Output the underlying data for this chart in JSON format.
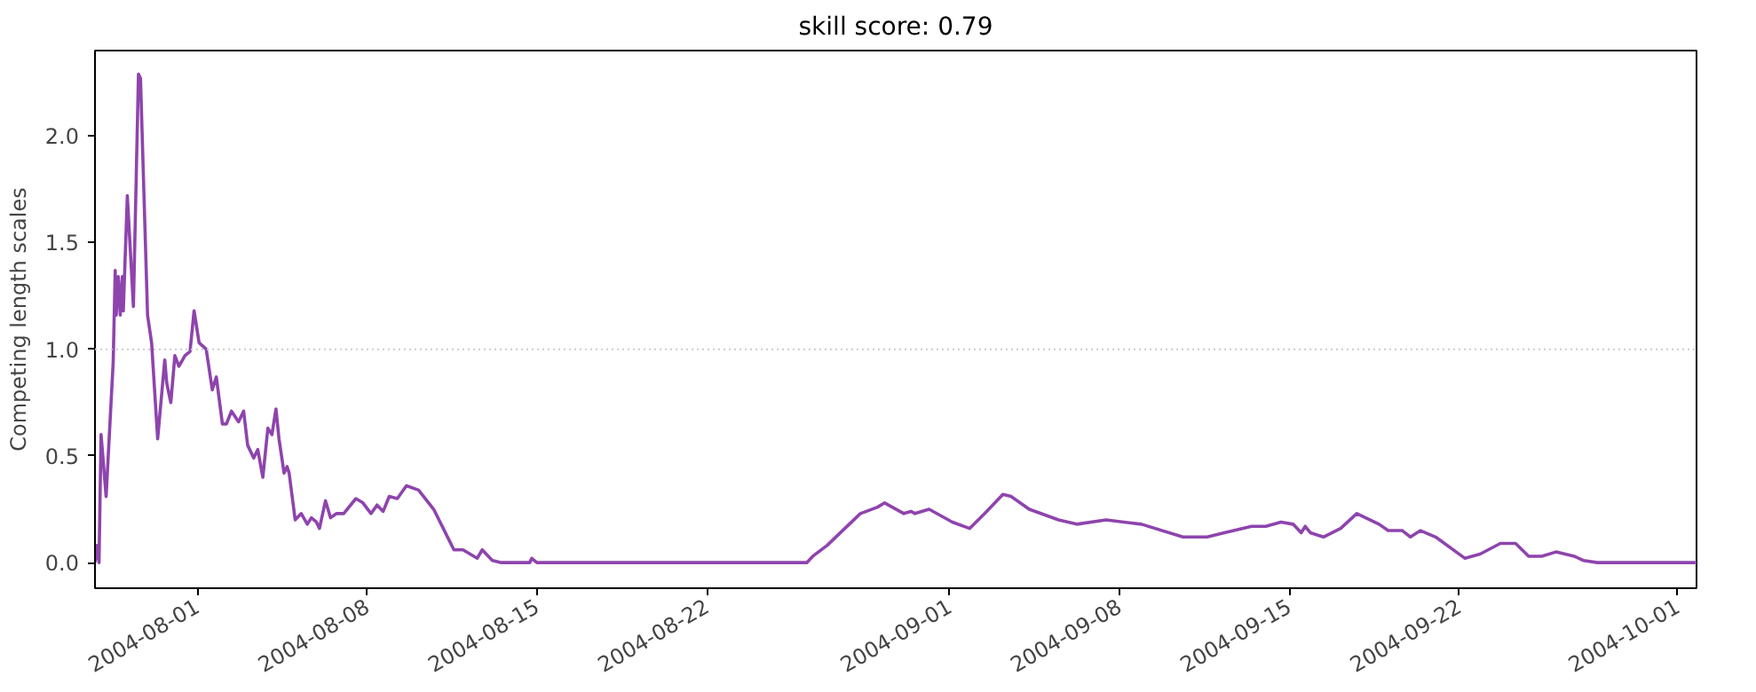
{
  "chart_data": {
    "type": "line",
    "title": "skill score: 0.79",
    "ylabel": "Competing length scales",
    "x": [
      "2004-07-27T19:00",
      "2004-07-27T21:00",
      "2004-07-27T23:00",
      "2004-07-28T01:00",
      "2004-07-28T06:00",
      "2004-07-28T13:00",
      "2004-07-28T15:00",
      "2004-07-28T16:00",
      "2004-07-28T18:00",
      "2004-07-28T20:00",
      "2004-07-28T22:00",
      "2004-07-28T23:00",
      "2004-07-29T03:00",
      "2004-07-29T09:00",
      "2004-07-29T14:00",
      "2004-07-29T16:00",
      "2004-07-29T23:00",
      "2004-07-30T03:00",
      "2004-07-30T09:00",
      "2004-07-30T16:00",
      "2004-07-30T18:00",
      "2004-07-30T22:00",
      "2004-07-31T02:00",
      "2004-07-31T06:00",
      "2004-07-31T12:00",
      "2004-07-31T17:00",
      "2004-07-31T21:00",
      "2004-08-01T02:00",
      "2004-08-01T09:00",
      "2004-08-01T15:00",
      "2004-08-01T19:00",
      "2004-08-02T01:00",
      "2004-08-02T05:00",
      "2004-08-02T10:00",
      "2004-08-02T17:00",
      "2004-08-02T22:00",
      "2004-08-03T02:00",
      "2004-08-03T08:00",
      "2004-08-03T12:00",
      "2004-08-03T17:00",
      "2004-08-03T22:00",
      "2004-08-04T02:00",
      "2004-08-04T06:00",
      "2004-08-04T09:00",
      "2004-08-04T14:00",
      "2004-08-04T17:00",
      "2004-08-04T19:00",
      "2004-08-05T01:00",
      "2004-08-05T07:00",
      "2004-08-05T13:00",
      "2004-08-05T17:00",
      "2004-08-05T22:00",
      "2004-08-06T01:00",
      "2004-08-06T07:00",
      "2004-08-06T12:00",
      "2004-08-06T18:00",
      "2004-08-07T01:00",
      "2004-08-07T13:00",
      "2004-08-07T20:00",
      "2004-08-08T04:00",
      "2004-08-08T10:00",
      "2004-08-08T16:00",
      "2004-08-08T22:00",
      "2004-08-09T06:00",
      "2004-08-09T15:00",
      "2004-08-10T03:00",
      "2004-08-10T18:00",
      "2004-08-11T14:00",
      "2004-08-11T23:00",
      "2004-08-12T13:00",
      "2004-08-12T18:00",
      "2004-08-13T04:00",
      "2004-08-13T13:00",
      "2004-08-14T17:00",
      "2004-08-14T19:00",
      "2004-08-15T00:00",
      "2004-08-26T03:00",
      "2004-08-26T09:00",
      "2004-08-26T23:00",
      "2004-08-28T08:00",
      "2004-08-29T01:00",
      "2004-08-29T08:00",
      "2004-08-30T03:00",
      "2004-08-30T10:00",
      "2004-08-30T14:00",
      "2004-08-31T04:00",
      "2004-09-01T03:00",
      "2004-09-01T20:00",
      "2004-09-02T11:00",
      "2004-09-03T05:00",
      "2004-09-03T13:00",
      "2004-09-04T07:00",
      "2004-09-05T12:00",
      "2004-09-06T06:00",
      "2004-09-07T11:00",
      "2004-09-08T22:00",
      "2004-09-10T15:00",
      "2004-09-11T15:00",
      "2004-09-12T08:00",
      "2004-09-13T11:00",
      "2004-09-14T01:00",
      "2004-09-14T16:00",
      "2004-09-15T04:00",
      "2004-09-15T12:00",
      "2004-09-15T16:00",
      "2004-09-15T21:00",
      "2004-09-16T10:00",
      "2004-09-17T03:00",
      "2004-09-17T19:00",
      "2004-09-18T17:00",
      "2004-09-19T02:00",
      "2004-09-19T16:00",
      "2004-09-20T00:00",
      "2004-09-20T10:00",
      "2004-09-21T01:00",
      "2004-09-22T06:00",
      "2004-09-22T21:00",
      "2004-09-23T17:00",
      "2004-09-24T08:00",
      "2004-09-24T21:00",
      "2004-09-25T10:00",
      "2004-09-26T00:00",
      "2004-09-26T18:00",
      "2004-09-27T03:00",
      "2004-09-27T17:00",
      "2004-10-01T19:00"
    ],
    "series": [
      {
        "color": "#8e44ad",
        "values": [
          0.0,
          0.08,
          0.0,
          0.6,
          0.31,
          0.94,
          1.37,
          1.16,
          1.34,
          1.16,
          1.34,
          1.18,
          1.72,
          1.2,
          2.29,
          2.27,
          1.16,
          1.03,
          0.58,
          0.95,
          0.84,
          0.75,
          0.97,
          0.92,
          0.97,
          0.99,
          1.18,
          1.03,
          1.0,
          0.81,
          0.87,
          0.65,
          0.65,
          0.71,
          0.66,
          0.71,
          0.55,
          0.49,
          0.53,
          0.4,
          0.63,
          0.6,
          0.72,
          0.58,
          0.42,
          0.45,
          0.42,
          0.2,
          0.23,
          0.18,
          0.21,
          0.19,
          0.16,
          0.29,
          0.21,
          0.23,
          0.23,
          0.3,
          0.28,
          0.23,
          0.27,
          0.24,
          0.31,
          0.3,
          0.36,
          0.34,
          0.25,
          0.06,
          0.06,
          0.02,
          0.06,
          0.01,
          0.0,
          0.0,
          0.02,
          0.0,
          0.0,
          0.03,
          0.08,
          0.23,
          0.26,
          0.28,
          0.23,
          0.24,
          0.23,
          0.25,
          0.19,
          0.16,
          0.23,
          0.32,
          0.31,
          0.25,
          0.2,
          0.18,
          0.2,
          0.18,
          0.12,
          0.12,
          0.14,
          0.17,
          0.17,
          0.19,
          0.18,
          0.14,
          0.17,
          0.14,
          0.12,
          0.16,
          0.23,
          0.18,
          0.15,
          0.15,
          0.12,
          0.15,
          0.12,
          0.02,
          0.04,
          0.09,
          0.09,
          0.03,
          0.03,
          0.05,
          0.03,
          0.01,
          0.0,
          0.0
        ]
      }
    ],
    "xlim": [
      "2004-07-27T19:00",
      "2004-10-01T19:00"
    ],
    "xticks": [
      "2004-08-01",
      "2004-08-08",
      "2004-08-15",
      "2004-08-22",
      "2004-09-01",
      "2004-09-08",
      "2004-09-15",
      "2004-09-22",
      "2004-10-01"
    ],
    "ylim": [
      -0.12,
      2.4
    ],
    "yticks": [
      {
        "value": 0,
        "label": "0.0"
      },
      {
        "value": 0.5,
        "label": "0.5"
      },
      {
        "value": 1.0,
        "label": "1.0"
      },
      {
        "value": 1.5,
        "label": "1.5"
      },
      {
        "value": 2.0,
        "label": "2.0"
      }
    ],
    "ref_lines": [
      {
        "axis": "y",
        "value": 1.0,
        "color": "#cccccc",
        "line_style": "dotted"
      }
    ],
    "grid": false,
    "line_style": "solid"
  }
}
